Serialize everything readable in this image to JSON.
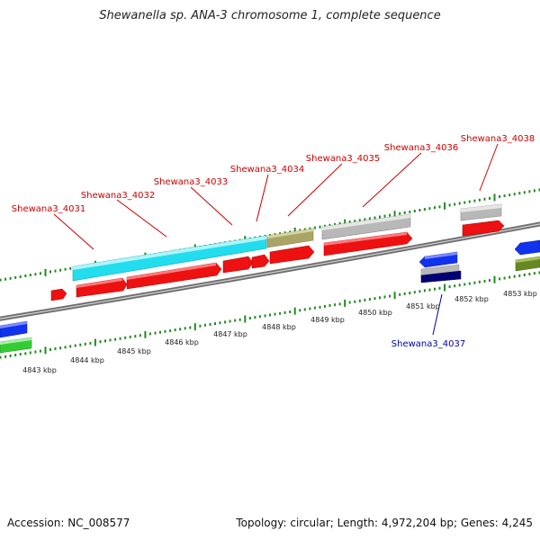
{
  "header": {
    "title": "Shewanella sp. ANA-3 chromosome 1, complete sequence"
  },
  "footer": {
    "accession": "Accession: NC_008577",
    "topology": "Topology: circular; Length: 4,972,204 bp; Genes: 4,245"
  },
  "colors": {
    "forward_cds": "#ee1111",
    "reverse_cds": "#1133ee",
    "label_forward": "#cc0000",
    "label_reverse": "#0000aa",
    "tick_green": "#228822",
    "gene_cyan": "#22ddee",
    "gene_olive": "#aaa566",
    "gene_gray": "#b8b8b8",
    "gene_green": "#33cc33",
    "gene_darkgreen": "#668822",
    "gene_navy": "#000077"
  },
  "scale": {
    "labels": [
      "4843 kbp",
      "4844 kbp",
      "4845 kbp",
      "4846 kbp",
      "4847 kbp",
      "4848 kbp",
      "4849 kbp",
      "4850 kbp",
      "4851 kbp",
      "4852 kbp",
      "4853 kbp"
    ]
  },
  "gene_labels": [
    {
      "text": "Shewana3_4031",
      "strand": "forward"
    },
    {
      "text": "Shewana3_4032",
      "strand": "forward"
    },
    {
      "text": "Shewana3_4033",
      "strand": "forward"
    },
    {
      "text": "Shewana3_4034",
      "strand": "forward"
    },
    {
      "text": "Shewana3_4035",
      "strand": "forward"
    },
    {
      "text": "Shewana3_4036",
      "strand": "forward"
    },
    {
      "text": "Shewana3_4038",
      "strand": "forward"
    },
    {
      "text": "Shewana3_4037",
      "strand": "reverse"
    }
  ]
}
